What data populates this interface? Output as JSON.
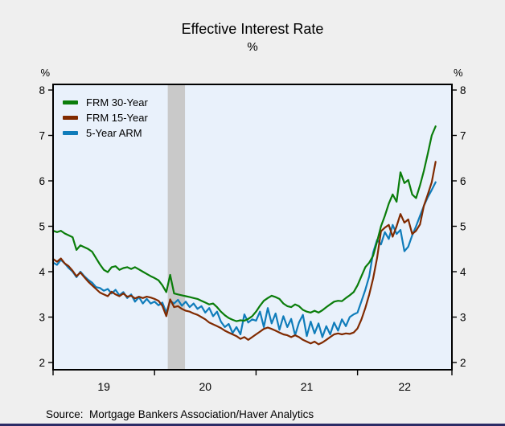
{
  "title": "Effective Interest Rate",
  "subtitle": "%",
  "axis_unit_left": "%",
  "axis_unit_right": "%",
  "source": "Source:  Mortgage Bankers Association/Haver Analytics",
  "colors": {
    "page_bg": "#efefef",
    "plot_bg": "#e9f1fb",
    "frame": "#000000",
    "recession_band": "#c9c9c9",
    "bottom_rule": "#2b2b66"
  },
  "chart_data": {
    "type": "line",
    "title": "Effective Interest Rate",
    "ylabel": "%",
    "ylim": [
      2,
      8
    ],
    "y_ticks": [
      2,
      3,
      4,
      5,
      6,
      7,
      8
    ],
    "x_domain": [
      2019.0,
      2022.93
    ],
    "x_ticks": [
      2019,
      2020,
      2021,
      2022,
      2022.93
    ],
    "x_tick_year_labels": [
      {
        "text": "19",
        "at": 2019.5
      },
      {
        "text": "20",
        "at": 2020.5
      },
      {
        "text": "21",
        "at": 2021.5
      },
      {
        "text": "22",
        "at": 2022.465
      }
    ],
    "grid": false,
    "legend_position": "top-left",
    "recession_band": {
      "from": 2020.13,
      "to": 2020.3
    },
    "x_start": 2019.0,
    "x_step": 0.0384615,
    "series": [
      {
        "name": "FRM 30-Year",
        "color": "#0a7d0a",
        "values": [
          4.9,
          4.87,
          4.9,
          4.84,
          4.8,
          4.76,
          4.48,
          4.58,
          4.54,
          4.5,
          4.44,
          4.3,
          4.16,
          4.04,
          3.99,
          4.1,
          4.12,
          4.04,
          4.08,
          4.1,
          4.06,
          4.1,
          4.05,
          4.0,
          3.95,
          3.9,
          3.86,
          3.81,
          3.7,
          3.55,
          3.93,
          3.52,
          3.5,
          3.48,
          3.46,
          3.44,
          3.42,
          3.4,
          3.36,
          3.32,
          3.28,
          3.3,
          3.22,
          3.12,
          3.04,
          2.98,
          2.94,
          2.91,
          2.93,
          2.92,
          2.96,
          3.02,
          3.12,
          3.25,
          3.36,
          3.42,
          3.47,
          3.44,
          3.4,
          3.3,
          3.24,
          3.22,
          3.28,
          3.24,
          3.16,
          3.12,
          3.1,
          3.14,
          3.1,
          3.15,
          3.22,
          3.28,
          3.34,
          3.36,
          3.35,
          3.42,
          3.48,
          3.55,
          3.7,
          3.9,
          4.1,
          4.2,
          4.35,
          4.66,
          5.0,
          5.23,
          5.5,
          5.7,
          5.54,
          6.19,
          5.95,
          6.02,
          5.7,
          5.62,
          5.9,
          6.22,
          6.6,
          7.0,
          7.2
        ]
      },
      {
        "name": "FRM 15-Year",
        "color": "#802a00",
        "values": [
          4.28,
          4.22,
          4.29,
          4.18,
          4.12,
          4.02,
          3.9,
          3.98,
          3.88,
          3.78,
          3.7,
          3.62,
          3.54,
          3.5,
          3.46,
          3.56,
          3.5,
          3.46,
          3.52,
          3.45,
          3.47,
          3.41,
          3.45,
          3.42,
          3.45,
          3.43,
          3.4,
          3.36,
          3.25,
          3.02,
          3.39,
          3.22,
          3.24,
          3.18,
          3.14,
          3.12,
          3.08,
          3.05,
          3.0,
          2.95,
          2.88,
          2.84,
          2.8,
          2.76,
          2.7,
          2.66,
          2.62,
          2.58,
          2.52,
          2.56,
          2.5,
          2.56,
          2.62,
          2.68,
          2.74,
          2.77,
          2.74,
          2.7,
          2.66,
          2.62,
          2.6,
          2.56,
          2.6,
          2.56,
          2.5,
          2.46,
          2.42,
          2.46,
          2.4,
          2.44,
          2.5,
          2.56,
          2.62,
          2.64,
          2.62,
          2.64,
          2.63,
          2.66,
          2.75,
          2.95,
          3.2,
          3.5,
          3.85,
          4.3,
          4.89,
          4.97,
          5.03,
          4.77,
          5.0,
          5.27,
          5.08,
          5.15,
          4.83,
          4.9,
          5.04,
          5.45,
          5.7,
          5.97,
          6.42
        ]
      },
      {
        "name": "5-Year ARM",
        "color": "#0f7cba",
        "values": [
          4.2,
          4.15,
          4.26,
          4.18,
          4.08,
          4.0,
          3.88,
          4.0,
          3.9,
          3.82,
          3.76,
          3.66,
          3.64,
          3.58,
          3.62,
          3.52,
          3.6,
          3.48,
          3.55,
          3.42,
          3.5,
          3.34,
          3.44,
          3.3,
          3.4,
          3.3,
          3.34,
          3.26,
          3.32,
          3.1,
          3.36,
          3.3,
          3.38,
          3.25,
          3.34,
          3.22,
          3.3,
          3.18,
          3.24,
          3.1,
          3.2,
          3.02,
          3.12,
          2.9,
          2.78,
          2.85,
          2.65,
          2.78,
          2.62,
          3.06,
          2.88,
          2.95,
          2.92,
          3.12,
          2.78,
          3.2,
          2.86,
          3.08,
          2.72,
          3.02,
          2.78,
          2.96,
          2.6,
          2.88,
          3.05,
          2.58,
          2.9,
          2.64,
          2.86,
          2.56,
          2.8,
          2.62,
          2.88,
          2.7,
          2.95,
          2.8,
          3.0,
          3.06,
          3.1,
          3.35,
          3.6,
          3.9,
          4.42,
          4.7,
          4.6,
          4.87,
          4.72,
          5.03,
          4.83,
          4.92,
          4.45,
          4.55,
          4.8,
          5.0,
          5.23,
          5.45,
          5.64,
          5.8,
          5.97
        ]
      }
    ]
  }
}
